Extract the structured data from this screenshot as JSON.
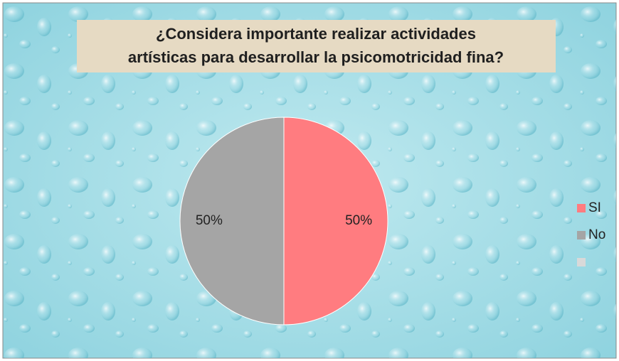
{
  "chart_data": {
    "type": "pie",
    "title": [
      "¿Considera importante realizar actividades",
      "artísticas para desarrollar la psicomotricidad fina?"
    ],
    "categories": [
      "SI",
      "No",
      null
    ],
    "values": [
      50,
      50,
      0
    ],
    "value_labels": [
      "50%",
      "50%",
      null
    ],
    "colors": [
      "#ff7c80",
      "#a5a5a5",
      "#d9d9d9"
    ],
    "legend": "right"
  }
}
